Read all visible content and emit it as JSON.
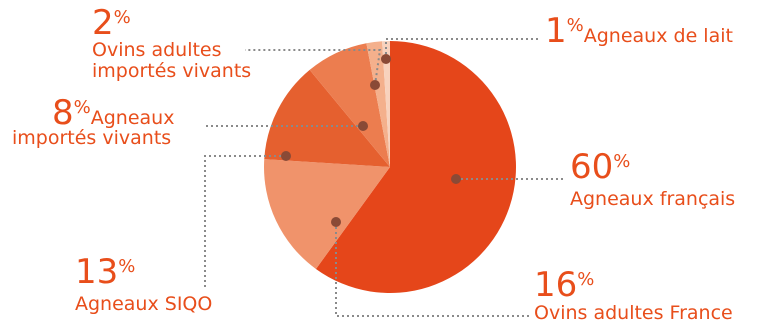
{
  "chart_data": {
    "type": "pie",
    "title": "",
    "slices": [
      {
        "key": "francais",
        "value": 60,
        "label": "Agneaux français",
        "color": "#e5461a"
      },
      {
        "key": "ovins_france",
        "value": 16,
        "label": "Ovins adultes France",
        "color": "#f0936b"
      },
      {
        "key": "siqo",
        "value": 13,
        "label": "Agneaux SIQO",
        "color": "#e5602f"
      },
      {
        "key": "agneaux_importes",
        "value": 8,
        "label": "Agneaux importés vivants",
        "color": "#ec7d4f"
      },
      {
        "key": "ovins_importes",
        "value": 2,
        "label": "Ovins adultes importés vivants",
        "color": "#f4b08c"
      },
      {
        "key": "lait",
        "value": 1,
        "label": "Agneaux de lait",
        "color": "#f8d2bd"
      }
    ]
  },
  "labels": {
    "francais": {
      "pct": "60",
      "unit": "%",
      "text": "Agneaux français"
    },
    "ovins_france": {
      "pct": "16",
      "unit": "%",
      "text": "Ovins adultes France"
    },
    "siqo": {
      "pct": "13",
      "unit": "%",
      "text": "Agneaux SIQO"
    },
    "agneaux_importes": {
      "pct": "8",
      "unit": "%",
      "text_line1": "Agneaux",
      "text_line2": "importés vivants"
    },
    "ovins_importes": {
      "pct": "2",
      "unit": "%",
      "text_line1": "Ovins adultes",
      "text_line2": "importés vivants"
    },
    "lait": {
      "pct": "1",
      "unit": "%",
      "text": "Agneaux de lait"
    }
  }
}
